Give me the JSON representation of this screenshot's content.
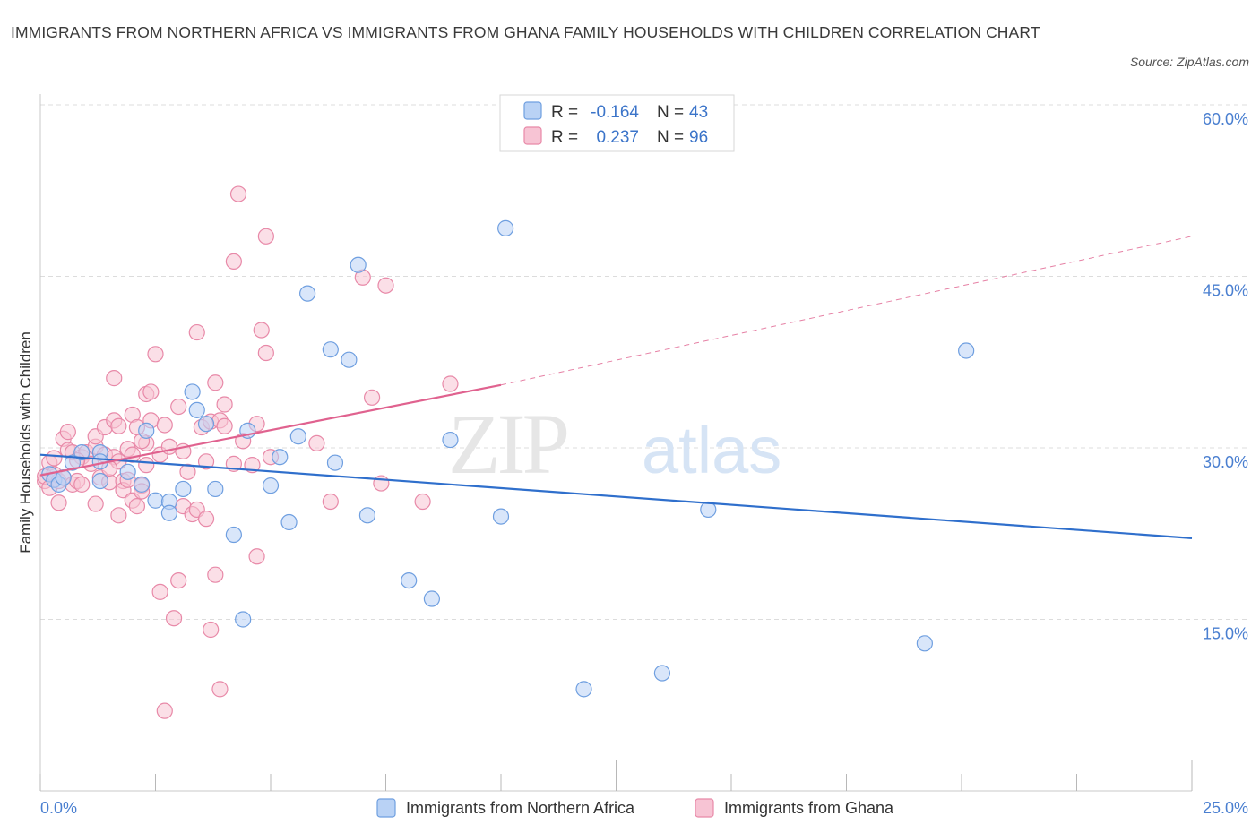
{
  "title": "IMMIGRANTS FROM NORTHERN AFRICA VS IMMIGRANTS FROM GHANA FAMILY HOUSEHOLDS WITH CHILDREN CORRELATION CHART",
  "source": "Source: ZipAtlas.com",
  "watermark": {
    "zip": "ZIP",
    "atlas": "atlas"
  },
  "colors": {
    "blue_fill": "#b9d2f5",
    "blue_stroke": "#6f9fe0",
    "blue_line": "#2f6fcc",
    "pink_fill": "#f7c4d4",
    "pink_stroke": "#e889a8",
    "pink_line": "#e0628f",
    "grid": "#dcdcdc",
    "tick_text": "#4a7fd0"
  },
  "legend_box": {
    "rows": [
      {
        "r_label": "R =",
        "r_value": "-0.164",
        "n_label": "N =",
        "n_value": "43"
      },
      {
        "r_label": "R =",
        "r_value": "0.237",
        "n_label": "N =",
        "n_value": "96"
      }
    ]
  },
  "chart_data": {
    "type": "scatter",
    "title": "IMMIGRANTS FROM NORTHERN AFRICA VS IMMIGRANTS FROM GHANA FAMILY HOUSEHOLDS WITH CHILDREN CORRELATION CHART",
    "xlabel": "",
    "ylabel": "Family Households with Children",
    "xlim": [
      0,
      25
    ],
    "ylim": [
      0,
      60
    ],
    "x_tick_labels": [
      "0.0%",
      "25.0%"
    ],
    "y_ticks": [
      15,
      30,
      45,
      60
    ],
    "y_tick_labels": [
      "15.0%",
      "30.0%",
      "45.0%",
      "60.0%"
    ],
    "legend_position": "bottom-center",
    "series": [
      {
        "name": "Immigrants from Northern Africa",
        "R": -0.164,
        "N": 43,
        "trend": {
          "x0": 0,
          "y0": 29.4,
          "x1": 25,
          "y1": 22.1
        },
        "points": [
          [
            0.2,
            27.7
          ],
          [
            0.3,
            27.2
          ],
          [
            0.4,
            26.8
          ],
          [
            0.5,
            27.4
          ],
          [
            0.7,
            28.7
          ],
          [
            0.9,
            29.6
          ],
          [
            1.3,
            29.6
          ],
          [
            1.3,
            28.8
          ],
          [
            1.3,
            27.1
          ],
          [
            1.9,
            27.9
          ],
          [
            2.2,
            26.8
          ],
          [
            2.3,
            31.5
          ],
          [
            2.5,
            25.4
          ],
          [
            2.8,
            25.3
          ],
          [
            2.8,
            24.3
          ],
          [
            3.1,
            26.4
          ],
          [
            3.3,
            34.9
          ],
          [
            3.4,
            33.3
          ],
          [
            3.6,
            32.1
          ],
          [
            3.8,
            26.4
          ],
          [
            4.2,
            22.4
          ],
          [
            4.4,
            15.0
          ],
          [
            4.5,
            31.5
          ],
          [
            5.0,
            26.7
          ],
          [
            5.2,
            29.2
          ],
          [
            5.4,
            23.5
          ],
          [
            5.6,
            31.0
          ],
          [
            5.8,
            43.5
          ],
          [
            6.3,
            38.6
          ],
          [
            6.4,
            28.7
          ],
          [
            6.7,
            37.7
          ],
          [
            6.9,
            46.0
          ],
          [
            7.1,
            24.1
          ],
          [
            8.0,
            18.4
          ],
          [
            8.5,
            16.8
          ],
          [
            8.9,
            30.7
          ],
          [
            10.0,
            24.0
          ],
          [
            10.1,
            49.2
          ],
          [
            11.8,
            8.9
          ],
          [
            13.5,
            10.3
          ],
          [
            14.5,
            24.6
          ],
          [
            19.2,
            12.9
          ],
          [
            20.1,
            38.5
          ]
        ]
      },
      {
        "name": "Immigrants from Ghana",
        "R": 0.237,
        "N": 96,
        "trend": {
          "x0": 0,
          "y0": 27.6,
          "x1": 10.0,
          "y1": 35.5,
          "dashed_to": {
            "x": 25,
            "y": 48.5
          }
        },
        "points": [
          [
            0.1,
            27.1
          ],
          [
            0.1,
            27.5
          ],
          [
            0.2,
            26.5
          ],
          [
            0.2,
            28.7
          ],
          [
            0.3,
            27.7
          ],
          [
            0.3,
            29.1
          ],
          [
            0.4,
            25.2
          ],
          [
            0.4,
            27.1
          ],
          [
            0.5,
            27.4
          ],
          [
            0.5,
            30.8
          ],
          [
            0.6,
            29.8
          ],
          [
            0.6,
            31.4
          ],
          [
            0.7,
            26.8
          ],
          [
            0.7,
            29.6
          ],
          [
            0.8,
            27.1
          ],
          [
            0.9,
            26.8
          ],
          [
            0.9,
            29.2
          ],
          [
            1.0,
            29.6
          ],
          [
            1.1,
            28.6
          ],
          [
            1.2,
            30.1
          ],
          [
            1.2,
            31.0
          ],
          [
            1.2,
            25.1
          ],
          [
            1.3,
            27.4
          ],
          [
            1.4,
            31.8
          ],
          [
            1.4,
            29.4
          ],
          [
            1.5,
            27.0
          ],
          [
            1.6,
            29.2
          ],
          [
            1.6,
            32.4
          ],
          [
            1.6,
            36.1
          ],
          [
            1.7,
            28.8
          ],
          [
            1.7,
            24.1
          ],
          [
            1.7,
            31.9
          ],
          [
            1.8,
            27.1
          ],
          [
            1.8,
            26.3
          ],
          [
            1.9,
            27.2
          ],
          [
            1.9,
            29.9
          ],
          [
            2.0,
            25.4
          ],
          [
            2.0,
            32.9
          ],
          [
            2.0,
            29.4
          ],
          [
            2.1,
            24.9
          ],
          [
            2.1,
            31.8
          ],
          [
            2.2,
            26.7
          ],
          [
            2.2,
            26.2
          ],
          [
            2.3,
            30.4
          ],
          [
            2.3,
            34.7
          ],
          [
            2.3,
            28.5
          ],
          [
            2.4,
            32.4
          ],
          [
            2.4,
            34.9
          ],
          [
            2.5,
            38.2
          ],
          [
            2.6,
            29.4
          ],
          [
            2.6,
            17.4
          ],
          [
            2.7,
            7.0
          ],
          [
            2.7,
            32.0
          ],
          [
            2.8,
            30.1
          ],
          [
            2.9,
            15.1
          ],
          [
            3.0,
            33.6
          ],
          [
            3.0,
            18.4
          ],
          [
            3.1,
            24.9
          ],
          [
            3.2,
            27.9
          ],
          [
            3.3,
            24.2
          ],
          [
            3.4,
            24.6
          ],
          [
            3.4,
            40.1
          ],
          [
            3.5,
            31.8
          ],
          [
            3.6,
            23.8
          ],
          [
            3.6,
            28.8
          ],
          [
            3.7,
            32.3
          ],
          [
            3.7,
            14.1
          ],
          [
            3.8,
            18.9
          ],
          [
            3.8,
            35.7
          ],
          [
            3.9,
            8.9
          ],
          [
            3.9,
            32.4
          ],
          [
            4.0,
            31.9
          ],
          [
            4.0,
            33.8
          ],
          [
            4.2,
            28.6
          ],
          [
            4.2,
            46.3
          ],
          [
            4.3,
            52.2
          ],
          [
            4.4,
            30.6
          ],
          [
            4.6,
            28.5
          ],
          [
            4.7,
            32.1
          ],
          [
            4.7,
            20.5
          ],
          [
            4.8,
            40.3
          ],
          [
            4.9,
            48.5
          ],
          [
            4.9,
            38.3
          ],
          [
            5.0,
            29.2
          ],
          [
            6.0,
            30.4
          ],
          [
            6.3,
            25.3
          ],
          [
            7.0,
            44.9
          ],
          [
            7.2,
            34.4
          ],
          [
            7.4,
            26.9
          ],
          [
            7.5,
            44.2
          ],
          [
            8.3,
            25.3
          ],
          [
            8.9,
            35.6
          ],
          [
            2.2,
            30.6
          ],
          [
            1.5,
            28.2
          ],
          [
            0.8,
            28.9
          ],
          [
            3.1,
            29.7
          ]
        ]
      }
    ]
  }
}
